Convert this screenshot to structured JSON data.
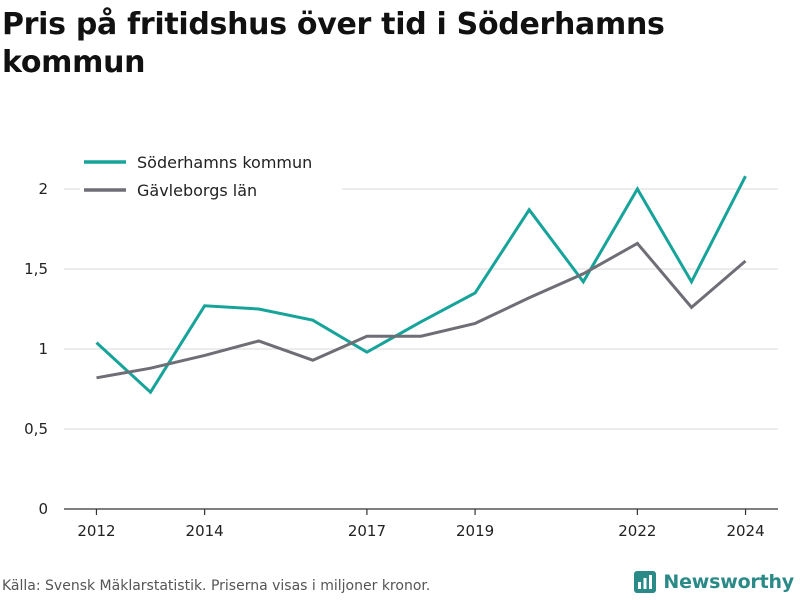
{
  "title": "Pris på fritidshus över tid i Söderhamns kommun",
  "source_note": "Källa: Svensk Mäklarstatistik. Priserna visas i miljoner kronor.",
  "brand": {
    "name": "Newsworthy",
    "color": "#2a8a87",
    "icon": "newsworthy-logo-icon"
  },
  "colors": {
    "soderhamn": "#16a39a",
    "gavleborg": "#6e6e76",
    "grid": "#d9d9d9",
    "axis": "#333333"
  },
  "chart_data": {
    "type": "line",
    "title": "Pris på fritidshus över tid i Söderhamns kommun",
    "xlabel": "",
    "ylabel": "",
    "x": [
      2012,
      2013,
      2014,
      2015,
      2016,
      2017,
      2018,
      2019,
      2020,
      2021,
      2022,
      2023,
      2024
    ],
    "x_ticks": [
      "2012",
      "2014",
      "2017",
      "2019",
      "2022",
      "2024"
    ],
    "x_tick_values": [
      2012,
      2014,
      2017,
      2019,
      2022,
      2024
    ],
    "xlim": [
      2011.4,
      2024.6
    ],
    "ylim": [
      0,
      2.15
    ],
    "y_ticks": [
      "0",
      "0,5",
      "1",
      "1,5",
      "2"
    ],
    "y_tick_values": [
      0,
      0.5,
      1,
      1.5,
      2
    ],
    "grid": "horizontal",
    "legend_position": "top-left",
    "series": [
      {
        "name": "Söderhamns kommun",
        "color": "#16a39a",
        "values": [
          1.04,
          0.73,
          1.27,
          1.25,
          1.18,
          0.98,
          1.17,
          1.35,
          1.87,
          1.42,
          2.0,
          1.42,
          2.08
        ]
      },
      {
        "name": "Gävleborgs län",
        "color": "#6e6e76",
        "values": [
          0.82,
          0.88,
          0.96,
          1.05,
          0.93,
          1.08,
          1.08,
          1.16,
          1.32,
          1.47,
          1.66,
          1.26,
          1.55
        ]
      }
    ]
  }
}
